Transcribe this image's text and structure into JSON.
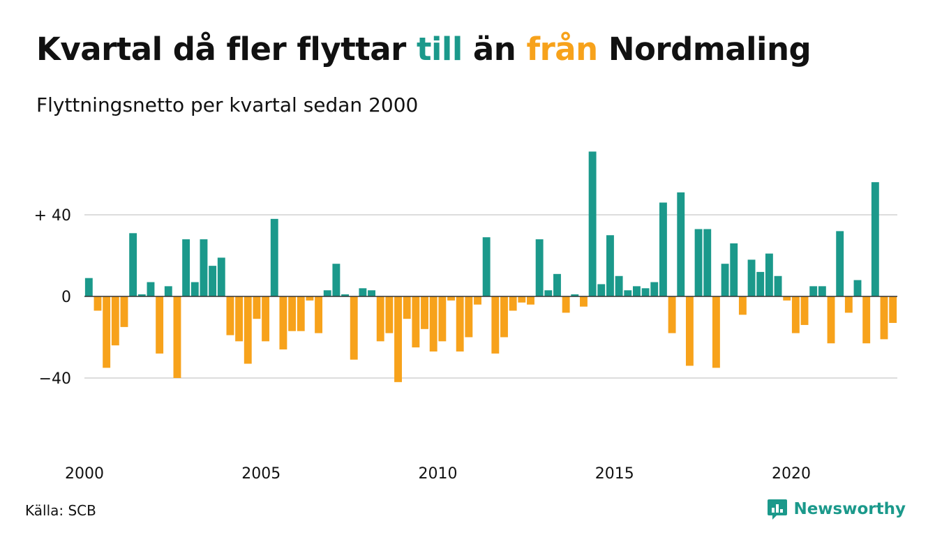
{
  "header": {
    "title_pre": "Kvartal då fler flyttar ",
    "title_till": "till",
    "title_mid": " än ",
    "title_fran": "från",
    "title_post": " Nordmaling",
    "subtitle": "Flyttningsnetto per kvartal sedan 2000"
  },
  "footer": {
    "source": "Källa: SCB",
    "brand": "Newsworthy",
    "brand_icon": "newsworthy-logo-icon"
  },
  "colors": {
    "positive": "#1b998b",
    "negative": "#f7a21b",
    "grid": "#dddddd",
    "zero": "#333333"
  },
  "chart_data": {
    "type": "bar",
    "title": "Kvartal då fler flyttar till än från Nordmaling",
    "subtitle": "Flyttningsnetto per kvartal sedan 2000",
    "start_year": 2000,
    "quarters_per_year": 4,
    "x_tick_labels": [
      "2000",
      "2005",
      "2010",
      "2015",
      "2020"
    ],
    "y_ticks": [
      {
        "value": 40,
        "label": "+ 40"
      },
      {
        "value": 0,
        "label": "0"
      },
      {
        "value": -40,
        "label": "−40"
      }
    ],
    "ylim": [
      -75,
      75
    ],
    "grid": true,
    "values": [
      9,
      -7,
      -35,
      -24,
      -15,
      31,
      1,
      7,
      -28,
      5,
      -40,
      28,
      7,
      28,
      15,
      19,
      -19,
      -22,
      -33,
      -11,
      -22,
      38,
      -26,
      -17,
      -17,
      -2,
      -18,
      3,
      16,
      1,
      -31,
      4,
      3,
      -22,
      -18,
      -42,
      -11,
      -25,
      -16,
      -27,
      -22,
      -2,
      -27,
      -20,
      -4,
      29,
      -28,
      -20,
      -7,
      -3,
      -4,
      28,
      3,
      11,
      -8,
      1,
      -5,
      71,
      6,
      30,
      10,
      3,
      5,
      4,
      7,
      46,
      -18,
      51,
      -34,
      33,
      33,
      -35,
      16,
      26,
      -9,
      18,
      12,
      21,
      10,
      -2,
      -18,
      -14,
      5,
      5,
      -23,
      32,
      -8,
      8,
      -23,
      56,
      -21,
      -13
    ]
  }
}
